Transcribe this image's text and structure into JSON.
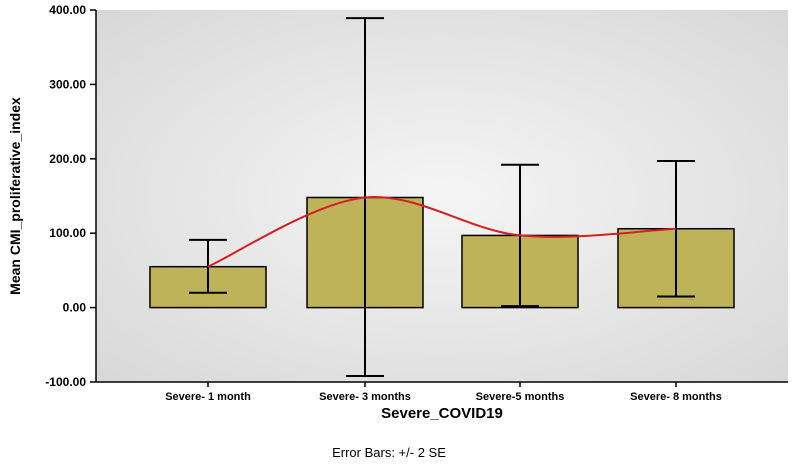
{
  "chart_data": {
    "type": "bar",
    "categories": [
      "Severe- 1 month",
      "Severe- 3 months",
      "Severe-5 months",
      "Severe- 8 months"
    ],
    "values": [
      55,
      148,
      97,
      106
    ],
    "error_bars": {
      "lower": [
        20,
        -92,
        2,
        15
      ],
      "upper": [
        91,
        389,
        192,
        197
      ]
    },
    "trend_line": "smooth curve through bar means",
    "xlabel": "Severe_COVID19",
    "ylabel": "Mean CMI_proliferative_index",
    "ylim": [
      -100,
      400
    ],
    "yticks": [
      -100,
      0,
      100,
      200,
      300,
      400
    ],
    "ytick_labels": [
      "-100.00",
      "0.00",
      "100.00",
      "200.00",
      "300.00",
      "400.00"
    ],
    "footnote": "Error Bars: +/- 2 SE",
    "grid": false,
    "colors": {
      "bar_fill": "#bfb35a",
      "bar_stroke": "#000000",
      "trend_line": "#d42020",
      "plot_background": "#e6e6e6"
    }
  }
}
